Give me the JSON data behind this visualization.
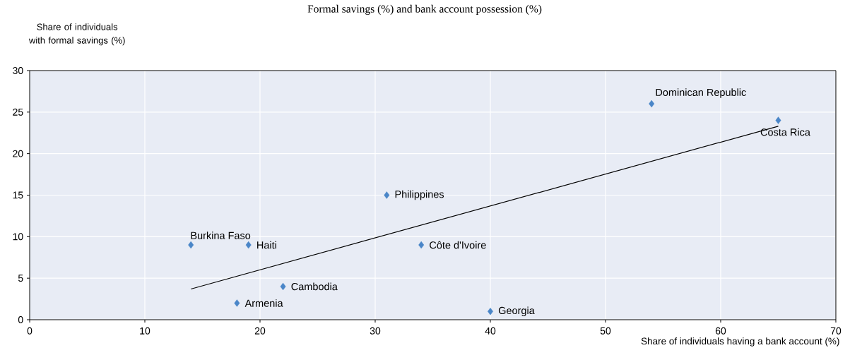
{
  "chart_data": {
    "type": "scatter",
    "subtitle": "Formal savings (%) and bank account possession (%)",
    "xlabel": "Share of individuals having a bank account (%)",
    "ylabel": "Share of individuals with formal savings (%)",
    "xlim": [
      0,
      70
    ],
    "xticks": [
      0,
      10,
      20,
      30,
      40,
      50,
      60,
      70
    ],
    "ylim": [
      0,
      30
    ],
    "yticks": [
      0,
      5,
      10,
      15,
      20,
      25,
      30
    ],
    "grid": true,
    "marker": "diamond",
    "series": [
      {
        "color": "#4a86c8",
        "x": [
          14,
          19,
          18,
          22,
          31,
          34,
          40,
          54,
          65
        ],
        "values": [
          9,
          9,
          2,
          4,
          15,
          9,
          1,
          26,
          24
        ]
      },
      {
        "type": "line",
        "color": "#000000",
        "marker": "none",
        "x": [
          14,
          65
        ],
        "values": [
          3.7,
          23.3
        ]
      }
    ],
    "annotations": [
      {
        "text": "Burkina Faso",
        "x": 14,
        "y": 9
      },
      {
        "text": "Haiti",
        "x": 19,
        "y": 9
      },
      {
        "text": "Armenia",
        "x": 18,
        "y": 2
      },
      {
        "text": "Cambodia",
        "x": 22,
        "y": 4
      },
      {
        "text": "Philippines",
        "x": 31,
        "y": 15
      },
      {
        "text": "Côte d'Ivoire",
        "x": 34,
        "y": 9
      },
      {
        "text": "Georgia",
        "x": 40,
        "y": 1
      },
      {
        "text": "Dominican Republic",
        "x": 54,
        "y": 26
      },
      {
        "text": "Costa Rica",
        "x": 65,
        "y": 24
      }
    ]
  }
}
